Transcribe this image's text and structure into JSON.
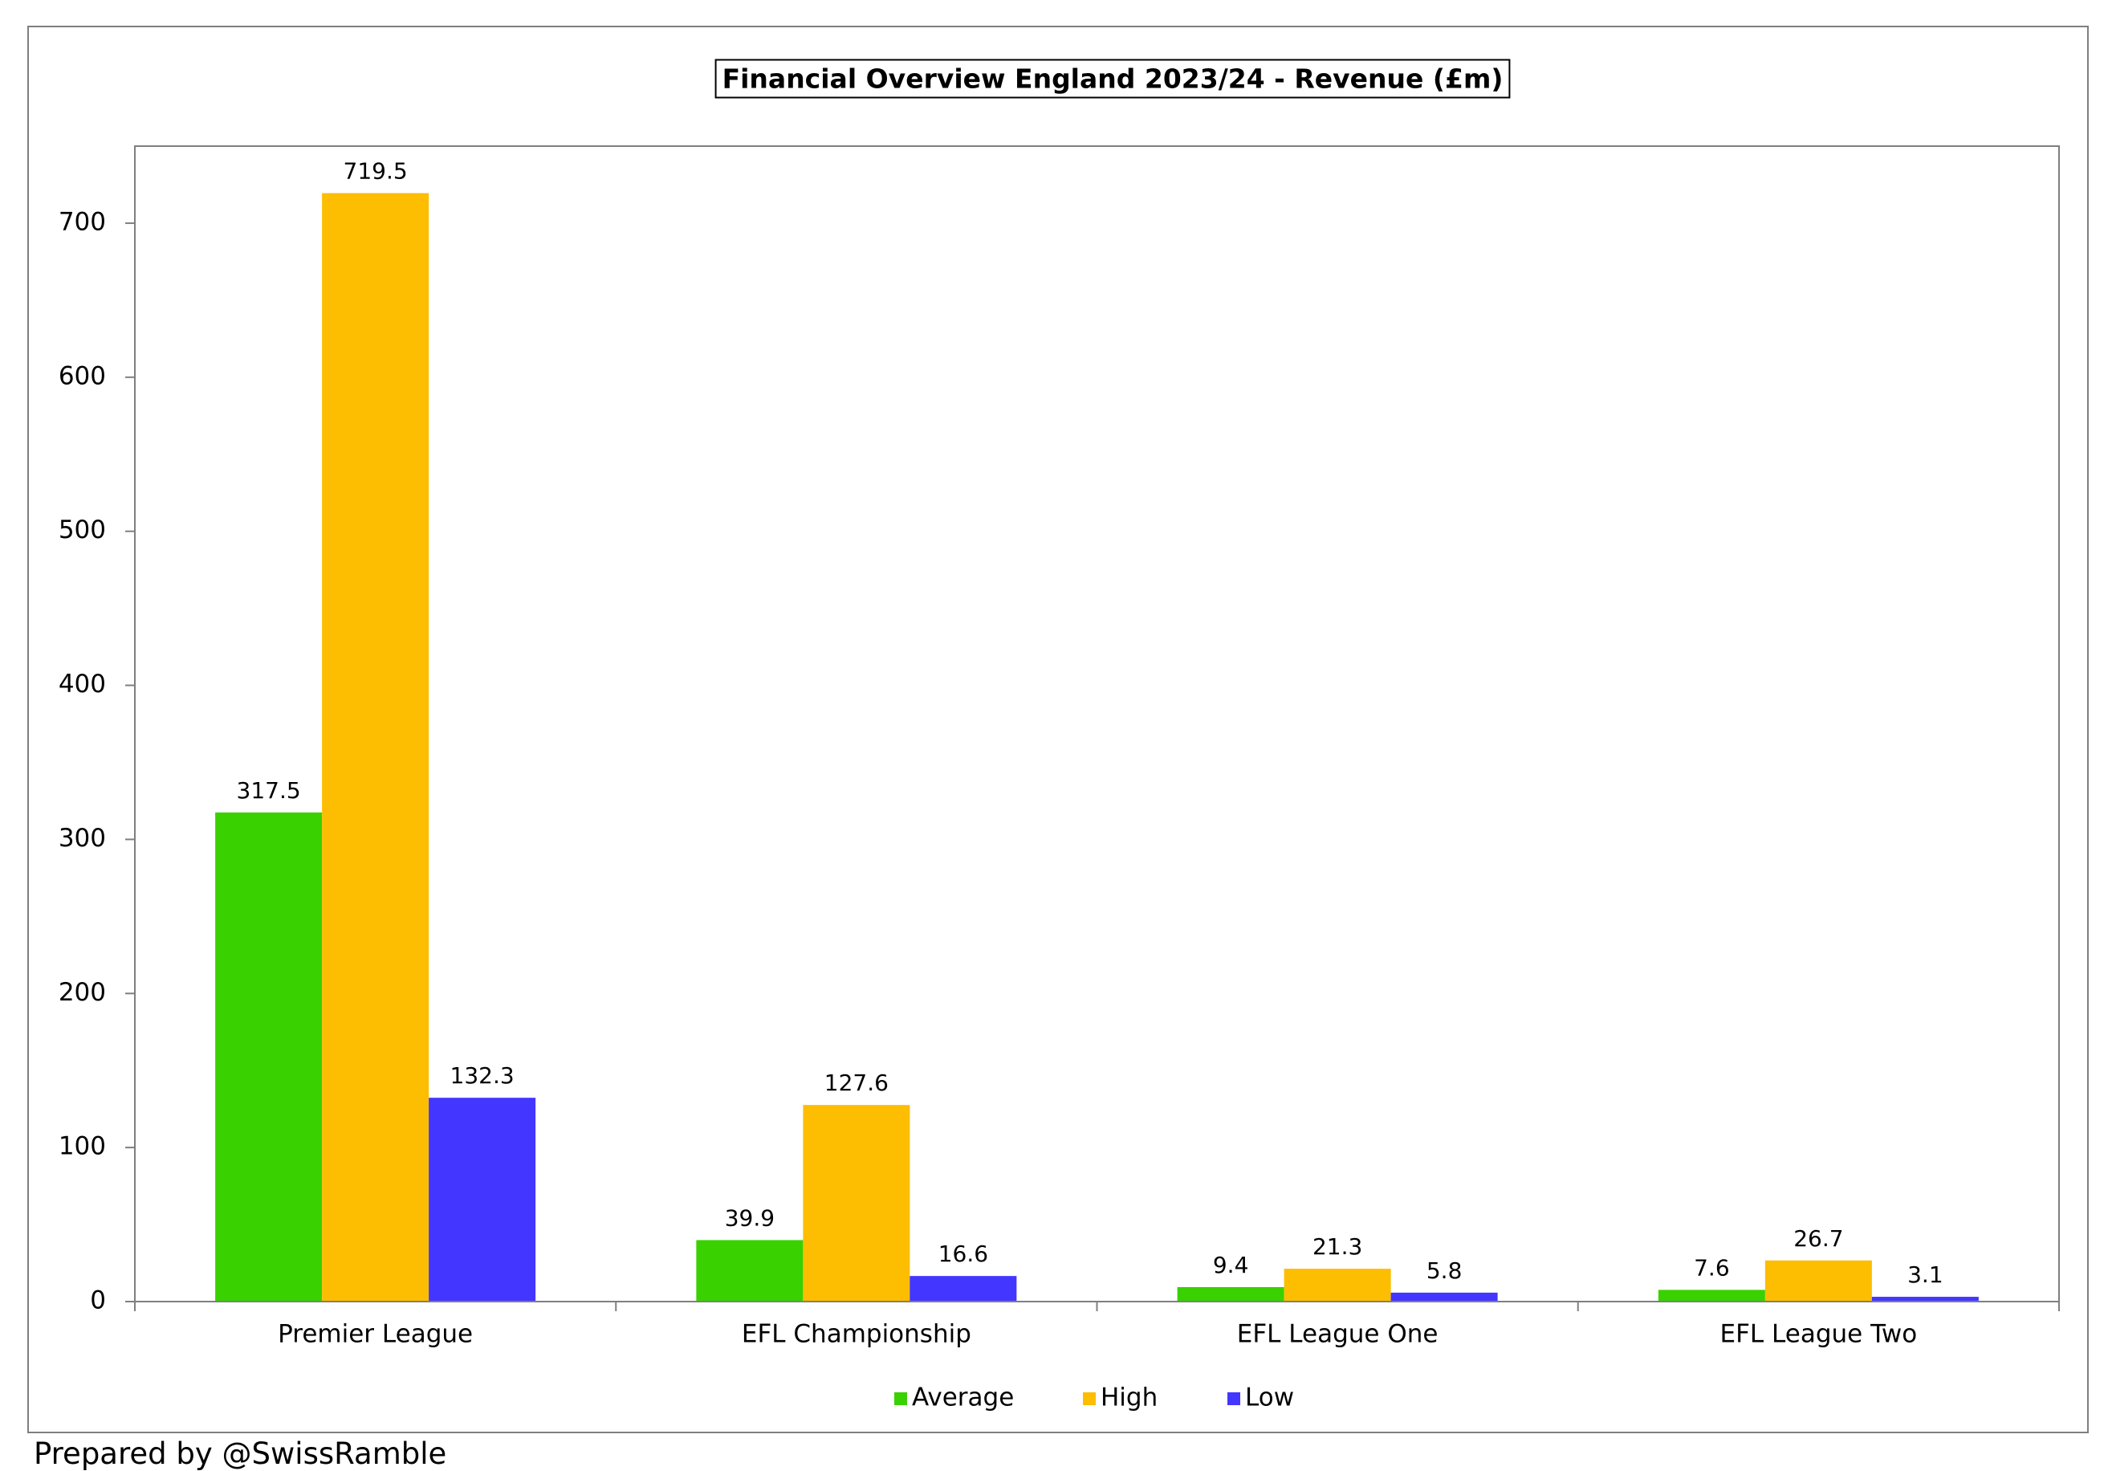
{
  "chart_data": {
    "type": "bar",
    "title": "Financial Overview England 2023/24 - Revenue (£m)",
    "xlabel": "",
    "ylabel": "",
    "categories": [
      "Premier League",
      "EFL Championship",
      "EFL League One",
      "EFL League Two"
    ],
    "series": [
      {
        "name": "Average",
        "color": "#39d100",
        "values": [
          317.5,
          39.9,
          9.4,
          7.6
        ]
      },
      {
        "name": "High",
        "color": "#fdbd00",
        "values": [
          719.5,
          127.6,
          21.3,
          26.7
        ]
      },
      {
        "name": "Low",
        "color": "#4236ff",
        "values": [
          132.3,
          16.6,
          5.8,
          3.1
        ]
      }
    ],
    "ylim": [
      0,
      750
    ],
    "yticks": [
      0,
      100,
      200,
      300,
      400,
      500,
      600,
      700
    ],
    "grid": false,
    "legend": "bottom-center",
    "data_labels": true
  },
  "footer": {
    "credit": "Prepared by @SwissRamble"
  }
}
